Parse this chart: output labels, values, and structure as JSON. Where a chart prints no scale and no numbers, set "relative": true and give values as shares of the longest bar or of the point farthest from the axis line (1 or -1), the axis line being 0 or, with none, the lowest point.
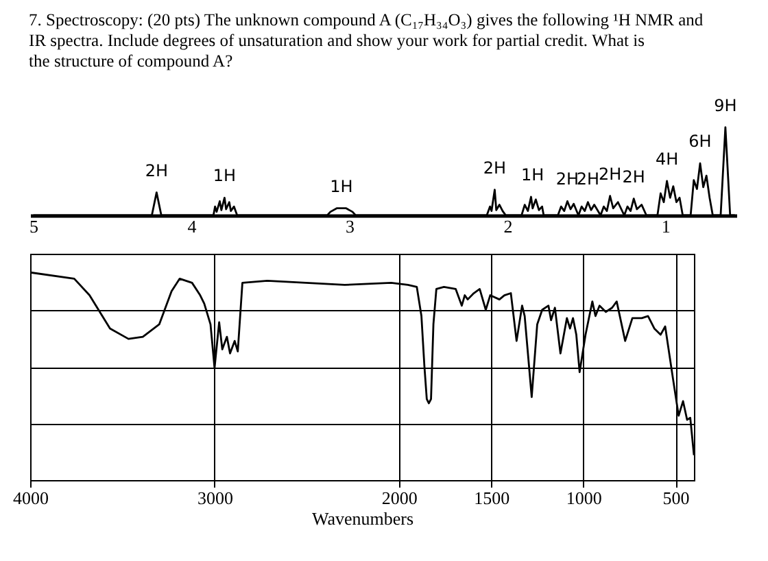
{
  "chart_data": [
    {
      "type": "line",
      "title": "7. Spectroscopy: (20 pts) The unknown compound A (C₁₇H₃₄O₃) gives the following ¹H NMR and IR spectra. Include degrees of unsaturation and show your work for partial credit. What is the structure of compound A?",
      "relative": true,
      "tick_labels": "x",
      "xlim": [
        5.02,
        0.55
      ],
      "xticks": [
        5,
        4,
        3,
        2,
        1
      ],
      "x": [
        5.0,
        4.25,
        4.22,
        4.19,
        3.86,
        3.85,
        3.84,
        3.82,
        3.81,
        3.79,
        3.78,
        3.76,
        3.75,
        3.73,
        3.71,
        3.14,
        3.12,
        3.08,
        3.02,
        2.98,
        2.96,
        2.13,
        2.11,
        2.1,
        2.08,
        2.07,
        2.05,
        2.03,
        2.01,
        1.91,
        1.89,
        1.87,
        1.85,
        1.84,
        1.82,
        1.8,
        1.78,
        1.77,
        1.68,
        1.66,
        1.64,
        1.62,
        1.6,
        1.58,
        1.55,
        1.53,
        1.51,
        1.49,
        1.47,
        1.45,
        1.41,
        1.39,
        1.37,
        1.35,
        1.33,
        1.3,
        1.26,
        1.24,
        1.22,
        1.2,
        1.18,
        1.15,
        1.12,
        1.05,
        1.03,
        1.01,
        0.99,
        0.97,
        0.95,
        0.93,
        0.91,
        0.89,
        0.84,
        0.82,
        0.8,
        0.78,
        0.76,
        0.74,
        0.72,
        0.7,
        0.65,
        0.62,
        0.59,
        0.56
      ],
      "series": [
        {
          "color": "#000000",
          "values": [
            0,
            0,
            0.26,
            0,
            0,
            0.1,
            0.04,
            0.16,
            0.06,
            0.2,
            0.07,
            0.15,
            0.05,
            0.1,
            0,
            0,
            0.04,
            0.08,
            0.08,
            0.04,
            0,
            0,
            0.1,
            0.05,
            0.29,
            0.06,
            0.12,
            0.05,
            0,
            0,
            0.12,
            0.05,
            0.21,
            0.08,
            0.18,
            0.06,
            0.1,
            0,
            0,
            0.1,
            0.05,
            0.16,
            0.07,
            0.13,
            0,
            0.1,
            0.05,
            0.15,
            0.06,
            0.12,
            0,
            0.1,
            0.05,
            0.22,
            0.08,
            0.15,
            0,
            0.1,
            0.05,
            0.19,
            0.07,
            0.12,
            0,
            0,
            0.25,
            0.15,
            0.39,
            0.2,
            0.33,
            0.15,
            0.2,
            0,
            0,
            0.4,
            0.3,
            0.59,
            0.32,
            0.45,
            0.2,
            0,
            0,
            1.0,
            0,
            0
          ]
        }
      ],
      "annotations": [
        {
          "text": "2H",
          "x": 4.22,
          "y": 0.26
        },
        {
          "text": "1H",
          "x": 3.79,
          "y": 0.2
        },
        {
          "text": "1H",
          "x": 3.05,
          "y": 0.08
        },
        {
          "text": "2H",
          "x": 2.08,
          "y": 0.29
        },
        {
          "text": "1H",
          "x": 1.84,
          "y": 0.21
        },
        {
          "text": "2H",
          "x": 1.62,
          "y": 0.16
        },
        {
          "text": "2H",
          "x": 1.49,
          "y": 0.16
        },
        {
          "text": "2H",
          "x": 1.35,
          "y": 0.22
        },
        {
          "text": "2H",
          "x": 1.2,
          "y": 0.19
        },
        {
          "text": "4H",
          "x": 0.99,
          "y": 0.39
        },
        {
          "text": "6H",
          "x": 0.78,
          "y": 0.59
        },
        {
          "text": "9H",
          "x": 0.62,
          "y": 1.0
        }
      ]
    },
    {
      "type": "line",
      "xlabel": "Wavenumbers",
      "relative": true,
      "tick_labels": "x",
      "grid": true,
      "xlim": [
        4000,
        400
      ],
      "xticks": [
        4000,
        3000,
        2000,
        1500,
        1000,
        500
      ],
      "x": [
        4000,
        3761,
        3678,
        3567,
        3467,
        3389,
        3300,
        3233,
        3189,
        3122,
        3078,
        3056,
        3022,
        3000,
        2975,
        2958,
        2933,
        2916,
        2891,
        2874,
        2849,
        2714,
        2504,
        2294,
        2042,
        1951,
        1903,
        1878,
        1862,
        1849,
        1838,
        1826,
        1813,
        1797,
        1756,
        1692,
        1659,
        1643,
        1627,
        1594,
        1562,
        1529,
        1505,
        1455,
        1428,
        1393,
        1362,
        1332,
        1318,
        1280,
        1250,
        1223,
        1189,
        1175,
        1154,
        1124,
        1089,
        1072,
        1056,
        1038,
        1020,
        988,
        951,
        934,
        912,
        878,
        844,
        819,
        773,
        734,
        683,
        649,
        615,
        581,
        556,
        514,
        483,
        459,
        437,
        420,
        400
      ],
      "series": [
        {
          "color": "#000000",
          "values": [
            1.0,
            0.97,
            0.89,
            0.73,
            0.68,
            0.69,
            0.75,
            0.91,
            0.97,
            0.95,
            0.89,
            0.85,
            0.75,
            0.54,
            0.76,
            0.63,
            0.69,
            0.61,
            0.67,
            0.62,
            0.95,
            0.96,
            0.95,
            0.94,
            0.95,
            0.94,
            0.93,
            0.79,
            0.55,
            0.39,
            0.37,
            0.39,
            0.75,
            0.92,
            0.93,
            0.92,
            0.84,
            0.89,
            0.87,
            0.9,
            0.92,
            0.82,
            0.89,
            0.87,
            0.89,
            0.9,
            0.67,
            0.84,
            0.79,
            0.4,
            0.75,
            0.82,
            0.84,
            0.77,
            0.83,
            0.61,
            0.78,
            0.73,
            0.78,
            0.7,
            0.52,
            0.7,
            0.86,
            0.79,
            0.84,
            0.81,
            0.83,
            0.86,
            0.67,
            0.78,
            0.78,
            0.79,
            0.73,
            0.7,
            0.74,
            0.49,
            0.31,
            0.38,
            0.29,
            0.3,
            0.12
          ]
        }
      ]
    }
  ]
}
